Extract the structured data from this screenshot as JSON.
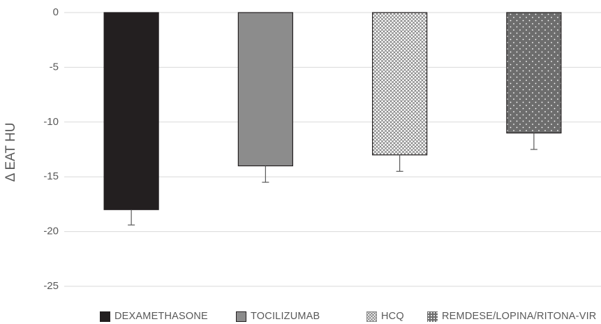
{
  "chart_data": {
    "type": "bar",
    "title": "",
    "xlabel": "",
    "ylabel": "Δ EAT HU",
    "ylim": [
      -25,
      0
    ],
    "yticks": [
      0,
      -5,
      -10,
      -15,
      -20,
      -25
    ],
    "ytick_labels": [
      "0",
      "-5",
      "-10",
      "-15",
      "-20",
      "-25"
    ],
    "grid": true,
    "legend_position": "bottom",
    "categories": [
      "DEXAMETHASONE",
      "TOCILIZUMAB",
      "HCQ",
      "REMDESE/LOPINA/RITONA-VIR"
    ],
    "values": [
      -18,
      -14,
      -13,
      -11
    ],
    "error": [
      1.4,
      1.5,
      1.5,
      1.5
    ],
    "fills": [
      "solid-black",
      "solid-gray",
      "crosshatch",
      "dots"
    ],
    "colors": [
      "#231f20",
      "#8c8c8c",
      "#ffffff",
      "#6d6d6d"
    ]
  }
}
